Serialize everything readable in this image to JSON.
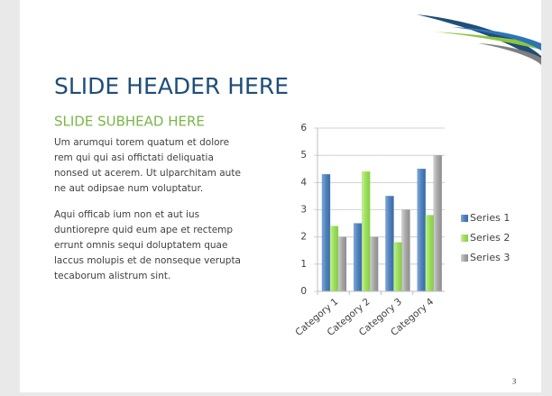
{
  "slide": {
    "title": "SLIDE HEADER HERE",
    "subhead": "SLIDE SUBHEAD HERE",
    "paragraphs": [
      [
        "Um arumqui torem quatum et dolore",
        "rem qui qui asi offictati deliquatia",
        "nonsed ut acerem. Ut ulparchitam aute",
        "ne aut odipsae num voluptatur."
      ],
      [
        "Aqui officab ium non et aut ius",
        "duntiorepre quid eum ape et rectemp",
        "errunt omnis sequi doluptatem quae",
        "laccus molupis et de nonseque verupta",
        "tecaborum alistrum sint."
      ]
    ],
    "page_number": 3
  },
  "chart_data": {
    "type": "bar",
    "categories": [
      "Category 1",
      "Category 2",
      "Category 3",
      "Category 4"
    ],
    "series": [
      {
        "name": "Series 1",
        "color": "#4f81bd",
        "values": [
          4.3,
          2.5,
          3.5,
          4.5
        ]
      },
      {
        "name": "Series 2",
        "color": "#9bde5a",
        "values": [
          2.4,
          4.4,
          1.8,
          2.8
        ]
      },
      {
        "name": "Series 3",
        "color": "#a6a6a6",
        "values": [
          2,
          2,
          3,
          5
        ]
      }
    ],
    "ylim": [
      0,
      6
    ],
    "yticks": [
      0,
      1,
      2,
      3,
      4,
      5,
      6
    ],
    "grid": true,
    "legend": "right"
  }
}
